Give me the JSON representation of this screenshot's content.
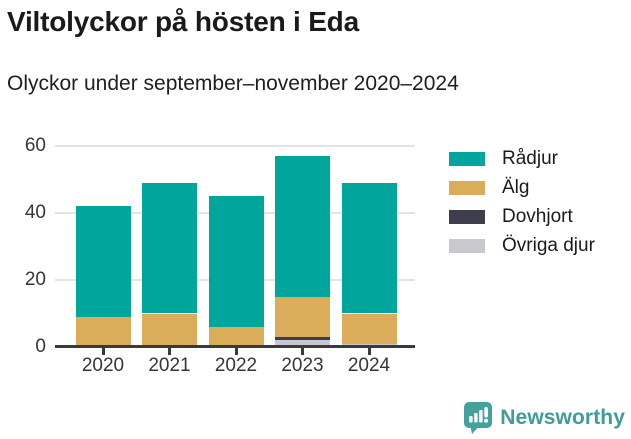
{
  "header": {
    "title": "Viltolyckor på hösten i Eda",
    "subtitle": "Olyckor under september–november 2020–2024"
  },
  "chart_data": {
    "type": "bar",
    "stacked": true,
    "title": "Viltolyckor på hösten i Eda",
    "subtitle": "Olyckor under september–november 2020–2024",
    "categories": [
      "2020",
      "2021",
      "2022",
      "2023",
      "2024"
    ],
    "series": [
      {
        "name": "Rådjur",
        "color": "#00A69C",
        "values": [
          33,
          39,
          39,
          42,
          39
        ]
      },
      {
        "name": "Älg",
        "color": "#DBAD5A",
        "values": [
          9,
          10,
          6,
          12,
          9
        ]
      },
      {
        "name": "Dovhjort",
        "color": "#3D3D4C",
        "values": [
          0,
          0,
          0,
          1,
          0
        ]
      },
      {
        "name": "Övriga djur",
        "color": "#C8C8CF",
        "values": [
          0,
          0,
          0,
          2,
          1
        ]
      }
    ],
    "totals": [
      42,
      49,
      45,
      57,
      49
    ],
    "stack_order_bottom_to_top": [
      "Övriga djur",
      "Dovhjort",
      "Älg",
      "Rådjur"
    ],
    "xlabel": "",
    "ylabel": "",
    "ylim": [
      0,
      60
    ],
    "yticks": [
      0,
      20,
      40,
      60
    ],
    "grid": true,
    "legend_position": "right",
    "colors": {
      "grid": "#e4e4e4",
      "axis": "#3a3a3a",
      "tick_text": "#363636"
    }
  },
  "footer": {
    "brand": "Newsworthy",
    "brand_color": "#3F9D98",
    "icon_color": "#44A19B",
    "logo_icon": "bar-chart-speech-bubble-icon"
  }
}
